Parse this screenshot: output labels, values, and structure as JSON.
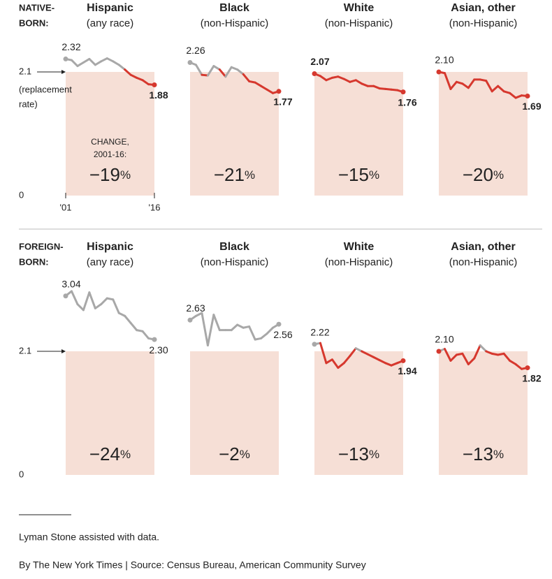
{
  "rows": [
    {
      "label": [
        "NATIVE-",
        "BORN:"
      ]
    },
    {
      "label": [
        "FOREIGN-",
        "BORN:"
      ]
    }
  ],
  "chart_data": [
    {
      "type": "line",
      "title": "Hispanic",
      "subtitle": "(any race)",
      "x": [
        2001,
        2002,
        2003,
        2004,
        2005,
        2006,
        2007,
        2008,
        2009,
        2010,
        2011,
        2012,
        2013,
        2014,
        2015,
        2016
      ],
      "values": [
        2.32,
        2.3,
        2.2,
        2.26,
        2.32,
        2.22,
        2.28,
        2.33,
        2.28,
        2.22,
        2.14,
        2.05,
        2.0,
        1.96,
        1.89,
        1.88
      ],
      "value_labels": [
        "2.32",
        null,
        null,
        null,
        null,
        null,
        null,
        null,
        null,
        null,
        null,
        null,
        null,
        null,
        null,
        "1.88"
      ],
      "xlim": [
        2001,
        2016
      ],
      "xticks": [
        {
          "value": 2001,
          "label": "'01"
        },
        {
          "value": 2016,
          "label": "'16"
        }
      ],
      "ylim": [
        0,
        2.4
      ],
      "yticks": [
        0,
        2.1
      ],
      "reference": 2.1,
      "reference_note": [
        "(replacement",
        "rate)"
      ],
      "change": -19,
      "change_label": "−19%",
      "change_title": [
        "CHANGE,",
        "2001-16:"
      ],
      "color_above": "#a8a8a8",
      "color_below": "#d6382e",
      "shade_color": "#f6dfd6"
    },
    {
      "type": "line",
      "title": "Black",
      "subtitle": "(non-Hispanic)",
      "x": [
        2001,
        2002,
        2003,
        2004,
        2005,
        2006,
        2007,
        2008,
        2009,
        2010,
        2011,
        2012,
        2013,
        2014,
        2015,
        2016
      ],
      "values": [
        2.26,
        2.22,
        2.05,
        2.04,
        2.2,
        2.14,
        2.02,
        2.18,
        2.14,
        2.06,
        1.94,
        1.92,
        1.86,
        1.8,
        1.74,
        1.77
      ],
      "value_labels": [
        "2.26",
        null,
        null,
        null,
        null,
        null,
        null,
        null,
        null,
        null,
        null,
        null,
        null,
        null,
        null,
        "1.77"
      ],
      "xlim": [
        2001,
        2016
      ],
      "ylim": [
        0,
        2.4
      ],
      "reference": 2.1,
      "change": -21,
      "change_label": "−21%",
      "color_above": "#a8a8a8",
      "color_below": "#d6382e",
      "shade_color": "#f6dfd6"
    },
    {
      "type": "line",
      "title": "White",
      "subtitle": "(non-Hispanic)",
      "x": [
        2001,
        2002,
        2003,
        2004,
        2005,
        2006,
        2007,
        2008,
        2009,
        2010,
        2011,
        2012,
        2013,
        2014,
        2015,
        2016
      ],
      "values": [
        2.07,
        2.03,
        1.96,
        2.0,
        2.02,
        1.98,
        1.93,
        1.96,
        1.9,
        1.86,
        1.86,
        1.82,
        1.81,
        1.8,
        1.79,
        1.76
      ],
      "value_labels": [
        "2.07",
        null,
        null,
        null,
        null,
        null,
        null,
        null,
        null,
        null,
        null,
        null,
        null,
        null,
        null,
        "1.76"
      ],
      "xlim": [
        2001,
        2016
      ],
      "ylim": [
        0,
        2.4
      ],
      "reference": 2.1,
      "change": -15,
      "change_label": "−15%",
      "color_above": "#a8a8a8",
      "color_below": "#d6382e",
      "shade_color": "#f6dfd6"
    },
    {
      "type": "line",
      "title": "Asian, other",
      "subtitle": "(non-Hispanic)",
      "x": [
        2001,
        2002,
        2003,
        2004,
        2005,
        2006,
        2007,
        2008,
        2009,
        2010,
        2011,
        2012,
        2013,
        2014,
        2015,
        2016
      ],
      "values": [
        2.1,
        2.08,
        1.81,
        1.93,
        1.9,
        1.83,
        1.97,
        1.97,
        1.95,
        1.77,
        1.86,
        1.77,
        1.74,
        1.66,
        1.7,
        1.69
      ],
      "value_labels": [
        "2.10",
        null,
        null,
        null,
        null,
        null,
        null,
        null,
        null,
        null,
        null,
        null,
        null,
        null,
        null,
        "1.69"
      ],
      "xlim": [
        2001,
        2016
      ],
      "ylim": [
        0,
        2.4
      ],
      "reference": 2.1,
      "change": -20,
      "change_label": "−20%",
      "color_above": "#a8a8a8",
      "color_below": "#d6382e",
      "shade_color": "#f6dfd6"
    },
    {
      "type": "line",
      "title": "Hispanic",
      "subtitle": "(any race)",
      "x": [
        2001,
        2002,
        2003,
        2004,
        2005,
        2006,
        2007,
        2008,
        2009,
        2010,
        2011,
        2012,
        2013,
        2014,
        2015,
        2016
      ],
      "values": [
        3.04,
        3.12,
        2.9,
        2.8,
        3.1,
        2.83,
        2.9,
        3.0,
        2.98,
        2.75,
        2.7,
        2.58,
        2.46,
        2.44,
        2.32,
        2.3
      ],
      "value_labels": [
        "3.04",
        null,
        null,
        null,
        null,
        null,
        null,
        null,
        null,
        null,
        null,
        null,
        null,
        null,
        null,
        "2.30"
      ],
      "xlim": [
        2001,
        2016
      ],
      "ylim": [
        0,
        3.2
      ],
      "yticks": [
        0,
        2.1
      ],
      "reference": 2.1,
      "change": -24,
      "change_label": "−24%",
      "color_above": "#a8a8a8",
      "color_below": "#d6382e",
      "shade_color": "#f6dfd6"
    },
    {
      "type": "line",
      "title": "Black",
      "subtitle": "(non-Hispanic)",
      "x": [
        2001,
        2002,
        2003,
        2004,
        2005,
        2006,
        2007,
        2008,
        2009,
        2010,
        2011,
        2012,
        2013,
        2014,
        2015,
        2016
      ],
      "values": [
        2.63,
        2.7,
        2.75,
        2.2,
        2.72,
        2.46,
        2.46,
        2.46,
        2.55,
        2.5,
        2.52,
        2.3,
        2.32,
        2.4,
        2.5,
        2.56
      ],
      "value_labels": [
        "2.63",
        null,
        null,
        null,
        null,
        null,
        null,
        null,
        null,
        null,
        null,
        null,
        null,
        null,
        null,
        "2.56"
      ],
      "xlim": [
        2001,
        2016
      ],
      "ylim": [
        0,
        3.2
      ],
      "reference": 2.1,
      "change": -2,
      "change_label": "−2%",
      "color_above": "#a8a8a8",
      "color_below": "#d6382e",
      "shade_color": "#f6dfd6"
    },
    {
      "type": "line",
      "title": "White",
      "subtitle": "(non-Hispanic)",
      "x": [
        2001,
        2002,
        2003,
        2004,
        2005,
        2006,
        2007,
        2008,
        2009,
        2010,
        2011,
        2012,
        2013,
        2014,
        2015,
        2016
      ],
      "values": [
        2.22,
        2.24,
        1.9,
        1.96,
        1.82,
        1.9,
        2.02,
        2.15,
        2.1,
        2.05,
        2.0,
        1.95,
        1.9,
        1.86,
        1.9,
        1.94
      ],
      "value_labels": [
        "2.22",
        null,
        null,
        null,
        null,
        null,
        null,
        null,
        null,
        null,
        null,
        null,
        null,
        null,
        null,
        "1.94"
      ],
      "xlim": [
        2001,
        2016
      ],
      "ylim": [
        0,
        3.2
      ],
      "reference": 2.1,
      "change": -13,
      "change_label": "−13%",
      "color_above": "#a8a8a8",
      "color_below": "#d6382e",
      "shade_color": "#f6dfd6"
    },
    {
      "type": "line",
      "title": "Asian, other",
      "subtitle": "(non-Hispanic)",
      "x": [
        2001,
        2002,
        2003,
        2004,
        2005,
        2006,
        2007,
        2008,
        2009,
        2010,
        2011,
        2012,
        2013,
        2014,
        2015,
        2016
      ],
      "values": [
        2.1,
        2.14,
        1.94,
        2.04,
        2.06,
        1.88,
        1.98,
        2.2,
        2.1,
        2.06,
        2.04,
        2.06,
        1.94,
        1.88,
        1.8,
        1.82
      ],
      "value_labels": [
        "2.10",
        null,
        null,
        null,
        null,
        null,
        null,
        null,
        null,
        null,
        null,
        null,
        null,
        null,
        null,
        "1.82"
      ],
      "xlim": [
        2001,
        2016
      ],
      "ylim": [
        0,
        3.2
      ],
      "reference": 2.1,
      "change": -13,
      "change_label": "−13%",
      "color_above": "#a8a8a8",
      "color_below": "#d6382e",
      "shade_color": "#f6dfd6"
    }
  ],
  "footnote": "Lyman Stone assisted with data.",
  "credit": "By The New York Times | Source: Census Bureau, American Community Survey"
}
